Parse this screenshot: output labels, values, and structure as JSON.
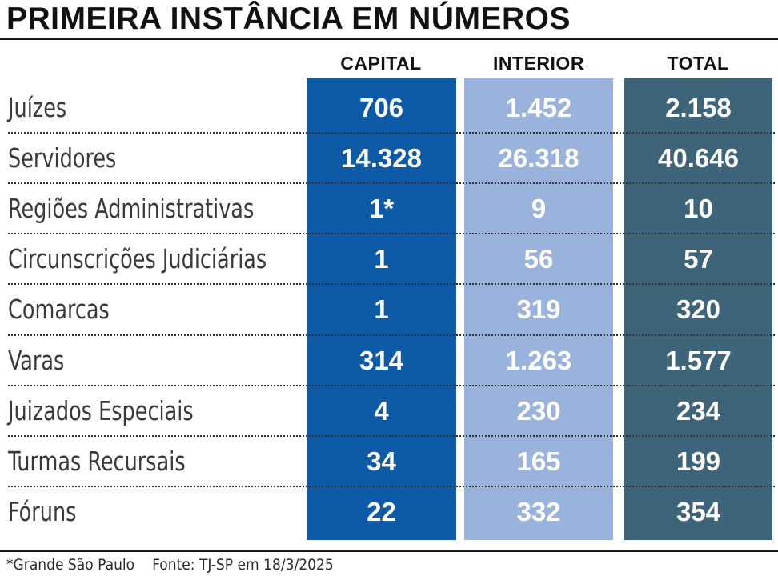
{
  "title": "PRIMEIRA INSTÂNCIA EM NÚMEROS",
  "columns": [
    "CAPITAL",
    "INTERIOR",
    "TOTAL"
  ],
  "colors": {
    "capital": "#0d5aa7",
    "interior": "#9ab3dc",
    "total": "#3e6479"
  },
  "rows": [
    {
      "label": "Juízes",
      "capital": "706",
      "interior": "1.452",
      "total": "2.158"
    },
    {
      "label": "Servidores",
      "capital": "14.328",
      "interior": "26.318",
      "total": "40.646"
    },
    {
      "label": "Regiões Administrativas",
      "capital": "1*",
      "interior": "9",
      "total": "10"
    },
    {
      "label": "Circunscrições Judiciárias",
      "capital": "1",
      "interior": "56",
      "total": "57"
    },
    {
      "label": "Comarcas",
      "capital": "1",
      "interior": "319",
      "total": "320"
    },
    {
      "label": "Varas",
      "capital": "314",
      "interior": "1.263",
      "total": "1.577"
    },
    {
      "label": "Juizados Especiais",
      "capital": "4",
      "interior": "230",
      "total": "234"
    },
    {
      "label": "Turmas Recursais",
      "capital": "34",
      "interior": "165",
      "total": "199"
    },
    {
      "label": "Fóruns",
      "capital": "22",
      "interior": "332",
      "total": "354"
    }
  ],
  "footnote": "*Grande São Paulo",
  "source": "Fonte: TJ-SP em 18/3/2025"
}
